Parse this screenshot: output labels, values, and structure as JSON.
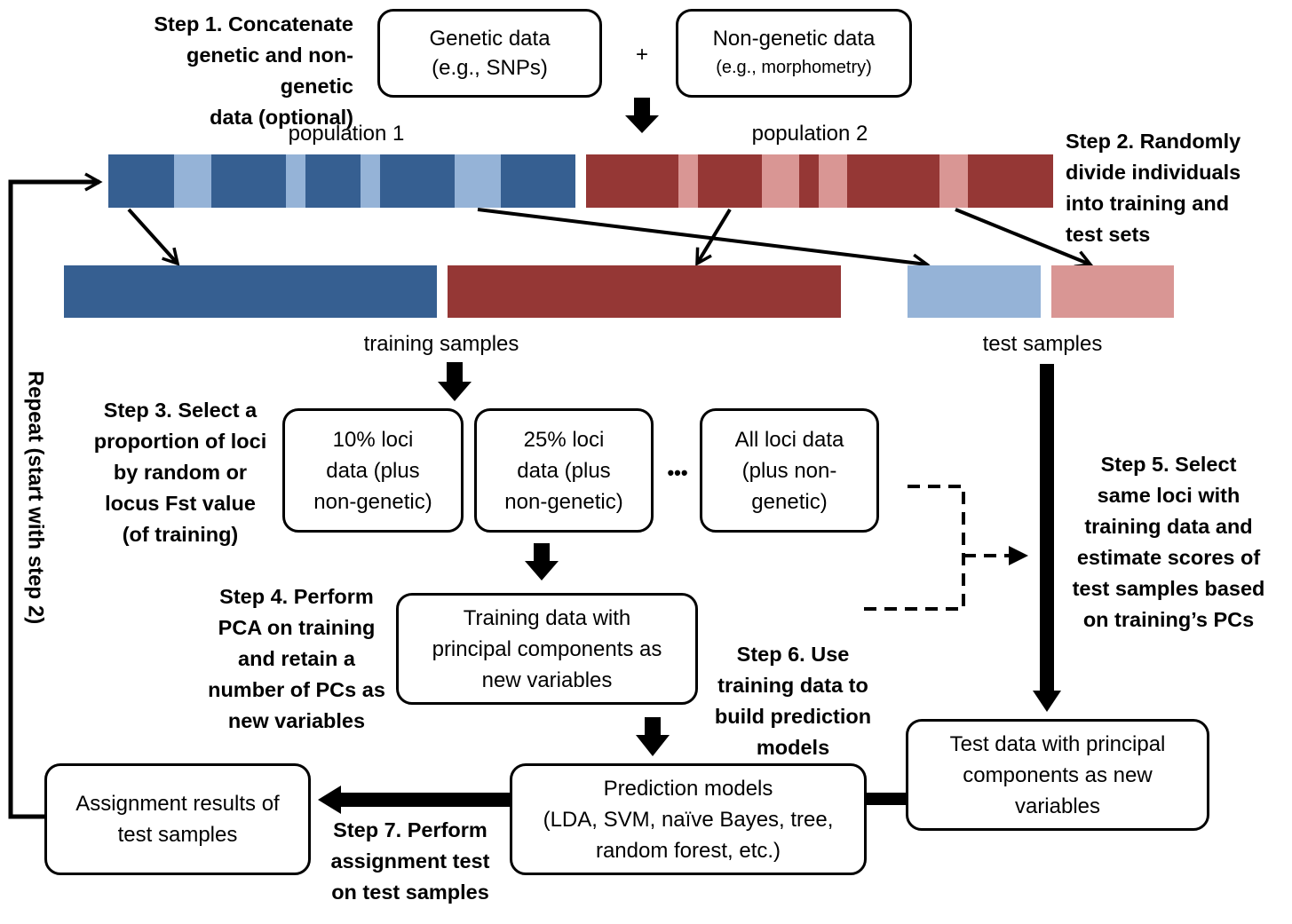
{
  "steps": {
    "step1": "Step 1. Concatenate\ngenetic and non-genetic\ndata (optional)",
    "step2": "Step 2. Randomly\ndivide individuals\ninto training and\ntest sets",
    "step3": "Step 3. Select a\nproportion of loci\nby random or\nlocus Fst value\n(of training)",
    "step4": "Step 4. Perform\nPCA on training\nand retain a\nnumber of PCs as\nnew variables",
    "step5": "Step 5. Select\nsame loci with\ntraining data and\nestimate scores of\ntest samples based\non training’s PCs",
    "step6": "Step 6. Use\ntraining data to\nbuild prediction\nmodels",
    "step7": "Step 7. Perform\nassignment test\non test samples",
    "repeat": "Repeat (start with step 2)"
  },
  "boxes": {
    "genetic_line1": "Genetic data",
    "genetic_line2": "(e.g., SNPs)",
    "nongenetic_line1": "Non-genetic data",
    "nongenetic_line2": "(e.g., morphometry)",
    "loci10": "10% loci\ndata (plus\nnon-genetic)",
    "loci25": "25% loci\ndata (plus\nnon-genetic)",
    "lociall": "All loci data\n(plus non-\ngenetic)",
    "training_pc": "Training data with\nprincipal components as\nnew variables",
    "test_pc": "Test data with principal\ncomponents as new\nvariables",
    "models": "Prediction models\n(LDA, SVM, naïve Bayes, tree,\nrandom forest, etc.)",
    "results": "Assignment results of\ntest samples"
  },
  "labels": {
    "plus": "+",
    "ellipsis": "•••",
    "population1": "population 1",
    "population2": "population 2",
    "training_samples": "training samples",
    "test_samples": "test samples"
  },
  "colors": {
    "pop1_dark": "#365f91",
    "pop1_light": "#95b3d7",
    "pop2_dark": "#953735",
    "pop2_light": "#d99694"
  }
}
